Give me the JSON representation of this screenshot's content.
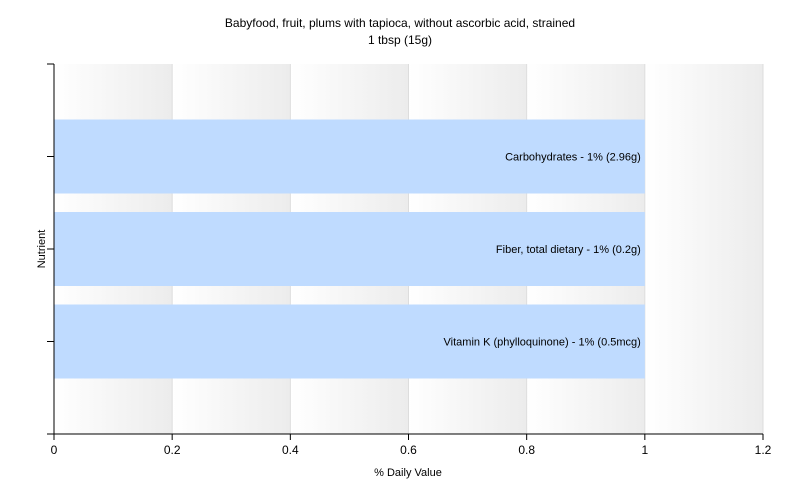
{
  "chart_data": {
    "type": "bar",
    "orientation": "horizontal",
    "title": "Babyfood, fruit, plums with tapioca, without ascorbic acid, strained",
    "subtitle": "1 tbsp (15g)",
    "xlabel": "% Daily Value",
    "ylabel": "Nutrient",
    "xlim": [
      0,
      1.2
    ],
    "xticks": [
      "0",
      "0.2",
      "0.4",
      "0.6",
      "0.8",
      "1",
      "1.2"
    ],
    "xtick_values": [
      0,
      0.2,
      0.4,
      0.6,
      0.8,
      1,
      1.2
    ],
    "categories": [
      "Carbohydrates",
      "Fiber, total dietary",
      "Vitamin K (phylloquinone)"
    ],
    "values": [
      1,
      1,
      1
    ],
    "data_labels": [
      "Carbohydrates - 1% (2.96g)",
      "Fiber, total dietary - 1% (0.2g)",
      "Vitamin K (phylloquinone) - 1% (0.5mcg)"
    ],
    "grid": true,
    "bar_color": "#bfdbff"
  }
}
